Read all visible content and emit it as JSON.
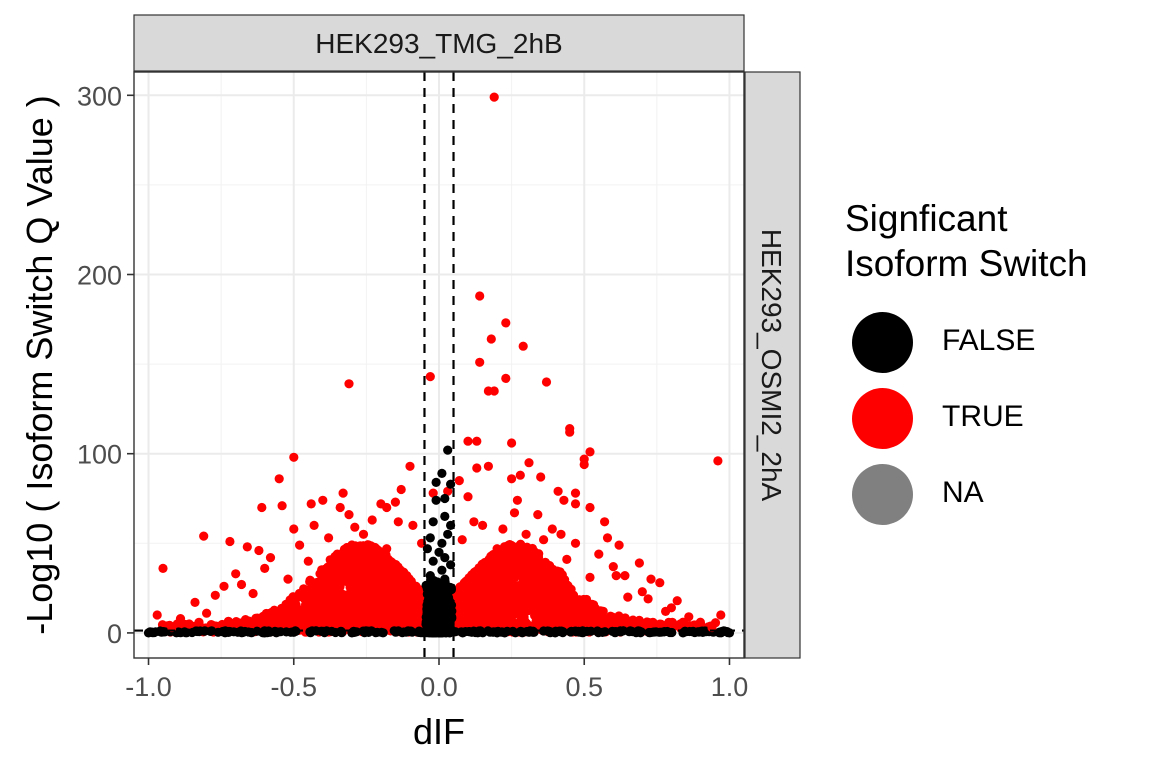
{
  "chart_data": {
    "type": "scatter",
    "xlabel": "dIF",
    "ylabel": "-Log10 ( Isoform Switch Q Value )",
    "xlim": [
      -1.05,
      1.05
    ],
    "ylim": [
      -14,
      313
    ],
    "x_ticks": [
      -1.0,
      -0.5,
      0.0,
      0.5,
      1.0
    ],
    "x_tick_labels": [
      "-1.0",
      "-0.5",
      "0.0",
      "0.5",
      "1.0"
    ],
    "y_ticks": [
      0,
      100,
      200,
      300
    ],
    "y_tick_labels": [
      "0",
      "100",
      "200",
      "300"
    ],
    "grid": true,
    "facet_top": "HEK293_TMG_2hB",
    "facet_right": "HEK293_OSMI2_2hA",
    "reference_lines": {
      "vertical": [
        -0.05,
        0.05
      ],
      "horizontal": [
        1.3
      ]
    },
    "legend": {
      "title_lines": [
        "Signficant",
        "Isoform Switch"
      ],
      "placement": "right",
      "entries": [
        {
          "label": "FALSE",
          "color": "#000000"
        },
        {
          "label": "TRUE",
          "color": "#ff0000"
        },
        {
          "label": "NA",
          "color": "#808080"
        }
      ]
    },
    "series": [
      {
        "name": "TRUE",
        "color": "#ff0000",
        "points": [
          [
            0.19,
            299
          ],
          [
            0.14,
            188
          ],
          [
            0.23,
            173
          ],
          [
            0.18,
            164
          ],
          [
            0.29,
            160
          ],
          [
            0.14,
            151
          ],
          [
            0.23,
            142
          ],
          [
            -0.03,
            143
          ],
          [
            0.37,
            140
          ],
          [
            0.19,
            135
          ],
          [
            0.17,
            135
          ],
          [
            -0.31,
            139
          ],
          [
            0.45,
            114
          ],
          [
            0.45,
            112
          ],
          [
            0.25,
            106
          ],
          [
            0.1,
            107
          ],
          [
            0.13,
            107
          ],
          [
            0.96,
            96
          ],
          [
            -0.5,
            98
          ],
          [
            0.52,
            101
          ],
          [
            0.5,
            97
          ],
          [
            0.5,
            94
          ],
          [
            -0.1,
            93
          ],
          [
            0.31,
            95
          ],
          [
            0.17,
            93
          ],
          [
            0.13,
            92
          ],
          [
            0.28,
            88
          ],
          [
            0.25,
            86
          ],
          [
            0.35,
            87
          ],
          [
            0.07,
            85
          ],
          [
            -0.55,
            86
          ],
          [
            -0.13,
            80
          ],
          [
            -0.33,
            78
          ],
          [
            0.47,
            78
          ],
          [
            0.41,
            79
          ],
          [
            -0.15,
            73
          ],
          [
            -0.34,
            70
          ],
          [
            -0.2,
            72
          ],
          [
            -0.18,
            70
          ],
          [
            0.52,
            70
          ],
          [
            0.47,
            72
          ],
          [
            0.43,
            74
          ],
          [
            0.27,
            74
          ],
          [
            0.1,
            76
          ],
          [
            0.03,
            79
          ],
          [
            -0.02,
            78
          ],
          [
            -0.4,
            74
          ],
          [
            -0.44,
            72
          ],
          [
            -0.54,
            71
          ],
          [
            -0.61,
            70
          ],
          [
            -0.31,
            66
          ],
          [
            0.34,
            66
          ],
          [
            0.26,
            67
          ],
          [
            -0.23,
            63
          ],
          [
            0.57,
            62
          ],
          [
            -0.14,
            62
          ],
          [
            0.12,
            62
          ],
          [
            -0.81,
            54
          ],
          [
            0.69,
            39
          ],
          [
            -0.95,
            36
          ],
          [
            -0.97,
            10
          ],
          [
            0.97,
            10
          ],
          [
            0.94,
            3
          ],
          [
            -0.89,
            8
          ],
          [
            0.64,
            32
          ],
          [
            0.61,
            32
          ],
          [
            -0.72,
            51
          ],
          [
            -0.66,
            48
          ],
          [
            -0.62,
            46
          ],
          [
            0.62,
            49
          ],
          [
            0.58,
            53
          ],
          [
            -0.43,
            60
          ],
          [
            -0.5,
            58
          ],
          [
            0.39,
            58
          ],
          [
            0.42,
            55
          ],
          [
            -0.26,
            55
          ],
          [
            0.3,
            55
          ],
          [
            0.82,
            18
          ],
          [
            0.8,
            14
          ],
          [
            -0.84,
            17
          ],
          [
            -0.77,
            21
          ],
          [
            0.76,
            28
          ],
          [
            0.73,
            30
          ],
          [
            -0.7,
            33
          ],
          [
            -0.68,
            27
          ],
          [
            0.7,
            23
          ],
          [
            0.86,
            9
          ],
          [
            -0.92,
            3
          ],
          [
            0.9,
            6
          ],
          [
            -0.58,
            42
          ],
          [
            0.55,
            44
          ],
          [
            -0.48,
            49
          ],
          [
            0.47,
            50
          ],
          [
            -0.38,
            53
          ],
          [
            0.36,
            52
          ],
          [
            -0.29,
            59
          ],
          [
            0.22,
            58
          ],
          [
            -0.06,
            50
          ],
          [
            0.08,
            52
          ],
          [
            -0.09,
            60
          ],
          [
            0.15,
            60
          ],
          [
            -0.24,
            46
          ],
          [
            0.27,
            48
          ],
          [
            -0.45,
            40
          ],
          [
            0.44,
            41
          ],
          [
            -0.6,
            36
          ],
          [
            0.6,
            37
          ],
          [
            -0.74,
            26
          ],
          [
            0.72,
            19
          ],
          [
            -0.8,
            11
          ],
          [
            0.78,
            12
          ],
          [
            -0.86,
            5
          ],
          [
            0.84,
            6
          ],
          [
            -0.35,
            44
          ],
          [
            0.33,
            43
          ],
          [
            -0.18,
            47
          ],
          [
            0.2,
            47
          ],
          [
            -0.52,
            30
          ],
          [
            0.52,
            31
          ],
          [
            -0.64,
            22
          ],
          [
            0.65,
            20
          ]
        ]
      },
      {
        "name": "FALSE",
        "color": "#000000",
        "points": [
          [
            0.03,
            102
          ],
          [
            0.01,
            89
          ],
          [
            -0.01,
            84
          ],
          [
            0.04,
            83
          ],
          [
            0.02,
            75
          ],
          [
            -0.01,
            74
          ],
          [
            0.02,
            65
          ],
          [
            -0.02,
            62
          ],
          [
            0.04,
            60
          ],
          [
            0.03,
            55
          ],
          [
            -0.03,
            53
          ],
          [
            0.01,
            50
          ],
          [
            -0.04,
            47
          ],
          [
            0.0,
            45
          ],
          [
            0.02,
            42
          ],
          [
            -0.02,
            40
          ],
          [
            0.04,
            38
          ],
          [
            0.01,
            35
          ],
          [
            -0.03,
            32
          ],
          [
            0.02,
            30
          ],
          [
            -1.0,
            0
          ],
          [
            1.0,
            0
          ],
          [
            0.84,
            0
          ],
          [
            -0.6,
            0
          ],
          [
            0.4,
            0
          ],
          [
            -0.3,
            0
          ],
          [
            0.2,
            0
          ]
        ]
      }
    ]
  }
}
